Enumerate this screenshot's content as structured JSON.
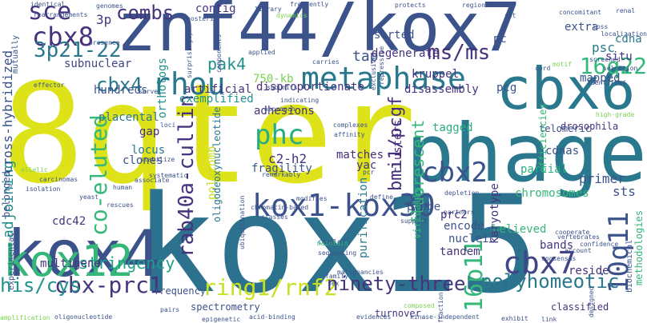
{
  "wordcloud": {
    "colors": {
      "lime": "#c8e020",
      "yellow": "#dde318",
      "teal": "#2a788e",
      "tealdark": "#2c728e",
      "navy": "#3b528b",
      "indigo": "#414487",
      "purple": "#46337e",
      "violet": "#472f7d",
      "green": "#27ad81",
      "mint": "#35b779",
      "light": "#7ad151",
      "cyan": "#21918c",
      "sea": "#1f9e89",
      "dark": "#440154"
    },
    "words": [
      {
        "text": "8qter",
        "color": "#dde318"
      },
      {
        "text": "kox15",
        "color": "#2c728e"
      },
      {
        "text": "phage",
        "color": "#2a788e"
      },
      {
        "text": "znf44/kox7",
        "color": "#3b528b"
      },
      {
        "text": "kox4",
        "color": "#3b528b"
      },
      {
        "text": "cbx6",
        "color": "#2a788e"
      },
      {
        "text": "kox12",
        "color": "#35b779"
      },
      {
        "text": "kox1-kox30",
        "color": "#3b528b"
      },
      {
        "text": "metaphase",
        "color": "#2a788e"
      },
      {
        "text": "rhou",
        "color": "#2a788e"
      },
      {
        "text": "cbx8",
        "color": "#46337e"
      },
      {
        "text": "3p21-22",
        "color": "#2a788e"
      },
      {
        "text": "sce",
        "color": "#46337e"
      },
      {
        "text": "combs",
        "color": "#46337e"
      },
      {
        "text": "ms/ms",
        "color": "#46337e"
      },
      {
        "text": "cbx4",
        "color": "#2a788e"
      },
      {
        "text": "phc",
        "color": "#27ad81"
      },
      {
        "text": "cbx2",
        "color": "#3b528b"
      },
      {
        "text": "cbx7",
        "color": "#414487"
      },
      {
        "text": "16q22",
        "color": "#35b779"
      },
      {
        "text": "10q11",
        "color": "#3b528b"
      },
      {
        "text": "16p11",
        "color": "#35b779"
      },
      {
        "text": "co-eluted",
        "color": "#35b779"
      },
      {
        "text": "rab40a-cullin",
        "color": "#46337e"
      },
      {
        "text": "ring1/rnf2",
        "color": "#c8e020"
      },
      {
        "text": "cbx-prc1",
        "color": "#46337e"
      },
      {
        "text": "polyhomeotic",
        "color": "#2a788e"
      },
      {
        "text": "ninety-three",
        "color": "#46337e"
      },
      {
        "text": "his/cys",
        "color": "#21918c"
      },
      {
        "text": "stringency",
        "color": "#1f9e89"
      },
      {
        "text": "pak4",
        "color": "#21918c"
      },
      {
        "text": "bmi1/pcgf",
        "color": "#472f7d"
      },
      {
        "text": "fluorescent",
        "color": "#35b779"
      },
      {
        "text": "adjoining",
        "color": "#21918c"
      },
      {
        "text": "cross-hybridized",
        "color": "#3b528b"
      },
      {
        "text": "750-kb",
        "color": "#7ad151"
      },
      {
        "text": "disproportionate",
        "color": "#472f7d"
      },
      {
        "text": "disassembly",
        "color": "#472f7d"
      },
      {
        "text": "kruppel",
        "color": "#46337e"
      },
      {
        "text": "tap",
        "color": "#3b528b"
      },
      {
        "text": "mapped",
        "color": "#3b528b"
      },
      {
        "text": "psc",
        "color": "#2a788e"
      },
      {
        "text": "cdna",
        "color": "#2a788e"
      },
      {
        "text": "situ",
        "color": "#472f7d"
      },
      {
        "text": "extra",
        "color": "#3b528b"
      },
      {
        "text": "pc",
        "color": "#3b528b"
      },
      {
        "text": "sorted",
        "color": "#3b528b"
      },
      {
        "text": "degenerate",
        "color": "#46337e"
      },
      {
        "text": "3p",
        "color": "#46337e"
      },
      {
        "text": "contig",
        "color": "#46337e"
      },
      {
        "text": "orthologs",
        "color": "#21918c"
      },
      {
        "text": "subnuclear",
        "color": "#414487"
      },
      {
        "text": "artificial",
        "color": "#472f7d"
      },
      {
        "text": "hundreds",
        "color": "#3b528b"
      },
      {
        "text": "exemplified",
        "color": "#21918c"
      },
      {
        "text": "placental",
        "color": "#2a788e"
      },
      {
        "text": "gap",
        "color": "#472f7d"
      },
      {
        "text": "locus",
        "color": "#2a788e"
      },
      {
        "text": "clones",
        "color": "#3b528b"
      },
      {
        "text": "polycomb",
        "color": "#c8e020"
      },
      {
        "text": "adhesions",
        "color": "#46337e"
      },
      {
        "text": "c2-h2",
        "color": "#46337e"
      },
      {
        "text": "fragility",
        "color": "#3b528b"
      },
      {
        "text": "matches",
        "color": "#472f7d"
      },
      {
        "text": "yac",
        "color": "#46337e"
      },
      {
        "text": "tagged",
        "color": "#27ad81"
      },
      {
        "text": "chromosomes",
        "color": "#35b779"
      },
      {
        "text": "partial",
        "color": "#27ad81"
      },
      {
        "text": "primer",
        "color": "#3b528b"
      },
      {
        "text": "sts",
        "color": "#3b528b"
      },
      {
        "text": "prc2",
        "color": "#46337e"
      },
      {
        "text": "probe",
        "color": "#3b528b"
      },
      {
        "text": "encode",
        "color": "#3b528b"
      },
      {
        "text": "nucleic",
        "color": "#3b528b"
      },
      {
        "text": "tandem",
        "color": "#46337e"
      },
      {
        "text": "bands",
        "color": "#46337e"
      },
      {
        "text": "reside",
        "color": "#472f7d"
      },
      {
        "text": "believed",
        "color": "#35b779"
      },
      {
        "text": "karyotype",
        "color": "#46337e"
      },
      {
        "text": "purification",
        "color": "#2a788e"
      },
      {
        "text": "clusters",
        "color": "#472f7d"
      },
      {
        "text": "multigene",
        "color": "#46337e"
      },
      {
        "text": "cdc42",
        "color": "#46337e"
      },
      {
        "text": "belonged",
        "color": "#3b528b"
      },
      {
        "text": "oligodeoxynucleotide",
        "color": "#2a788e"
      },
      {
        "text": "telomeric",
        "color": "#3b528b"
      },
      {
        "text": "drosophila",
        "color": "#46337e"
      },
      {
        "text": "cdnas",
        "color": "#3b528b"
      },
      {
        "text": "pcg",
        "color": "#3b528b"
      },
      {
        "text": "methodologies",
        "color": "#35b779"
      },
      {
        "text": "efficiencies",
        "color": "#35b779"
      },
      {
        "text": "virtually",
        "color": "#35b779"
      },
      {
        "text": "classified",
        "color": "#46337e"
      },
      {
        "text": "turnover",
        "color": "#46337e"
      },
      {
        "text": "spectrometry",
        "color": "#3b528b"
      },
      {
        "text": "frequency",
        "color": "#3b528b"
      },
      {
        "text": "biochemical",
        "color": "#3b528b"
      },
      {
        "text": "experimental",
        "color": "#3b528b"
      },
      {
        "text": "mutually",
        "color": "#3b528b"
      },
      {
        "text": "genomes",
        "color": "#3b528b"
      },
      {
        "text": "identical",
        "color": "#3b528b"
      },
      {
        "text": "rearrangements",
        "color": "#3b528b"
      },
      {
        "text": "presence",
        "color": "#3b528b"
      },
      {
        "text": "serve",
        "color": "#3b528b"
      },
      {
        "text": "effector",
        "color": "#3b528b"
      },
      {
        "text": "applied",
        "color": "#3b528b"
      },
      {
        "text": "carries",
        "color": "#3b528b"
      },
      {
        "text": "subunits",
        "color": "#3b528b"
      },
      {
        "text": "indicating",
        "color": "#3b528b"
      },
      {
        "text": "approach",
        "color": "#3b528b"
      },
      {
        "text": "loci",
        "color": "#3b528b"
      },
      {
        "text": "stabilize",
        "color": "#3b528b"
      },
      {
        "text": "associate",
        "color": "#3b528b"
      },
      {
        "text": "complexes",
        "color": "#3b528b"
      },
      {
        "text": "affinity",
        "color": "#3b528b"
      },
      {
        "text": "allelic",
        "color": "#7ad151"
      },
      {
        "text": "isolation",
        "color": "#3b528b"
      },
      {
        "text": "carcinomas",
        "color": "#3b528b"
      },
      {
        "text": "yeast",
        "color": "#3b528b"
      },
      {
        "text": "human",
        "color": "#3b528b"
      },
      {
        "text": "rescues",
        "color": "#3b528b"
      },
      {
        "text": "remarkably",
        "color": "#3b528b"
      },
      {
        "text": "pcr",
        "color": "#3b528b"
      },
      {
        "text": "define",
        "color": "#3b528b"
      },
      {
        "text": "chromatin-based",
        "color": "#3b528b"
      },
      {
        "text": "ubiquitination",
        "color": "#3b528b"
      },
      {
        "text": "classes",
        "color": "#3b528b"
      },
      {
        "text": "coupled",
        "color": "#3b528b"
      },
      {
        "text": "sequencing",
        "color": "#3b528b"
      },
      {
        "text": "maintain",
        "color": "#35b779"
      },
      {
        "text": "family",
        "color": "#3b528b"
      },
      {
        "text": "sex",
        "color": "#3b528b"
      },
      {
        "text": "malignancies",
        "color": "#3b528b"
      },
      {
        "text": "composed",
        "color": "#7ad151"
      },
      {
        "text": "acid-binding",
        "color": "#3b528b"
      },
      {
        "text": "evidences",
        "color": "#3b528b"
      },
      {
        "text": "kinase-independent",
        "color": "#3b528b"
      },
      {
        "text": "exhibit",
        "color": "#3b528b"
      },
      {
        "text": "link",
        "color": "#3b528b"
      },
      {
        "text": "designed",
        "color": "#3b528b"
      },
      {
        "text": "pairs",
        "color": "#3b528b"
      },
      {
        "text": "epigenetic",
        "color": "#3b528b"
      },
      {
        "text": "oligonucleotide",
        "color": "#3b528b"
      },
      {
        "text": "amplification",
        "color": "#7ad151"
      },
      {
        "text": "depletion",
        "color": "#3b528b"
      },
      {
        "text": "support",
        "color": "#3b528b"
      },
      {
        "text": "partners",
        "color": "#3b528b"
      },
      {
        "text": "fraction",
        "color": "#3b528b"
      },
      {
        "text": "vertebrates",
        "color": "#3b528b"
      },
      {
        "text": "cooperate",
        "color": "#3b528b"
      },
      {
        "text": "confidence",
        "color": "#3b528b"
      },
      {
        "text": "account",
        "color": "#3b528b"
      },
      {
        "text": "consensus",
        "color": "#3b528b"
      },
      {
        "text": "motif",
        "color": "#7ad151"
      },
      {
        "text": "cord",
        "color": "#3b528b"
      },
      {
        "text": "identified",
        "color": "#3b528b"
      },
      {
        "text": "selection",
        "color": "#3b528b"
      },
      {
        "text": "localization",
        "color": "#3b528b"
      },
      {
        "text": "loss",
        "color": "#3b528b"
      },
      {
        "text": "concomitant",
        "color": "#3b528b"
      },
      {
        "text": "renal",
        "color": "#3b528b"
      },
      {
        "text": "screened",
        "color": "#3b528b"
      },
      {
        "text": "set",
        "color": "#3b528b"
      },
      {
        "text": "regions",
        "color": "#3b528b"
      },
      {
        "text": "protects",
        "color": "#3b528b"
      },
      {
        "text": "frequently",
        "color": "#3b528b"
      },
      {
        "text": "dynamics",
        "color": "#7ad151"
      },
      {
        "text": "library",
        "color": "#3b528b"
      },
      {
        "text": "posterior",
        "color": "#3b528b"
      },
      {
        "text": "surprisingly",
        "color": "#3b528b"
      },
      {
        "text": "components",
        "color": "#3b528b"
      },
      {
        "text": "repressive",
        "color": "#3b528b"
      },
      {
        "text": "exclusive",
        "color": "#3b528b"
      },
      {
        "text": "systematic",
        "color": "#3b528b"
      },
      {
        "text": "high-grade",
        "color": "#7ad151"
      },
      {
        "text": "modifies",
        "color": "#3b528b"
      },
      {
        "text": "tumor-suppressor",
        "color": "#3b528b"
      }
    ]
  }
}
